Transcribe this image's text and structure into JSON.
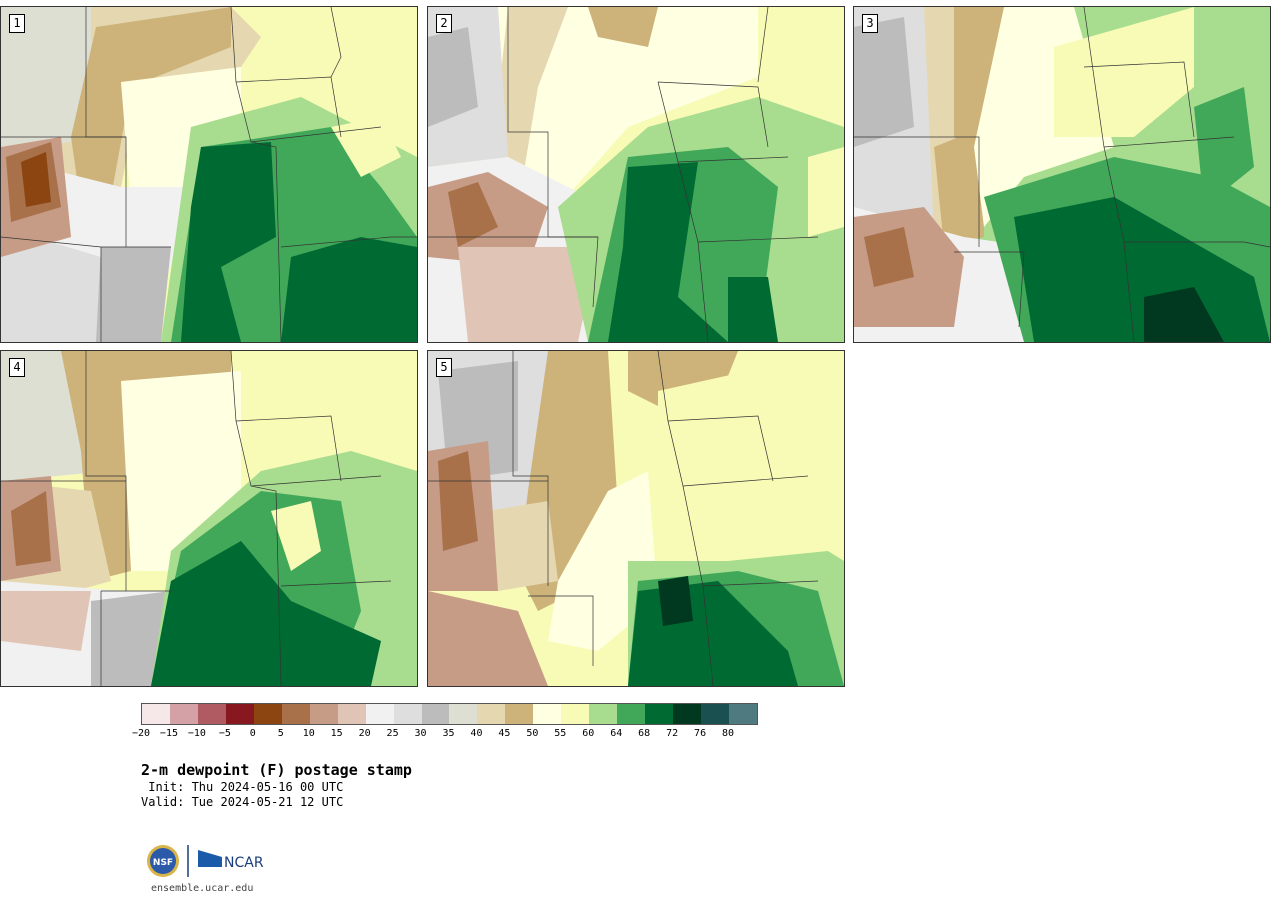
{
  "panels": [
    {
      "label": "1"
    },
    {
      "label": "2"
    },
    {
      "label": "3"
    },
    {
      "label": "4"
    },
    {
      "label": "5"
    }
  ],
  "colorbar": {
    "colors": [
      "#f6e8e9",
      "#d4a2a6",
      "#b05a62",
      "#881820",
      "#8c4510",
      "#a8714a",
      "#c69c86",
      "#e0c4b6",
      "#f1f1f1",
      "#dedede",
      "#bcbcbc",
      "#dddfd2",
      "#e5d8b0",
      "#cdb37a",
      "#ffffe2",
      "#f7fbb5",
      "#a8dc8e",
      "#41a85a",
      "#006a33",
      "#00391f",
      "#1b5050",
      "#4f7a80"
    ],
    "tick_labels": [
      "−20",
      "−15",
      "−10",
      "−5",
      "0",
      "5",
      "10",
      "15",
      "20",
      "25",
      "30",
      "35",
      "40",
      "45",
      "50",
      "55",
      "60",
      "64",
      "68",
      "72",
      "76",
      "80"
    ]
  },
  "title": "2-m dewpoint (F) postage stamp",
  "init_text": " Init: Thu 2024-05-16 00 UTC",
  "valid_text": "Valid: Tue 2024-05-21 12 UTC",
  "logos": {
    "nsf": "NSF",
    "ncar": "NCAR"
  },
  "site": "ensemble.ucar.edu"
}
